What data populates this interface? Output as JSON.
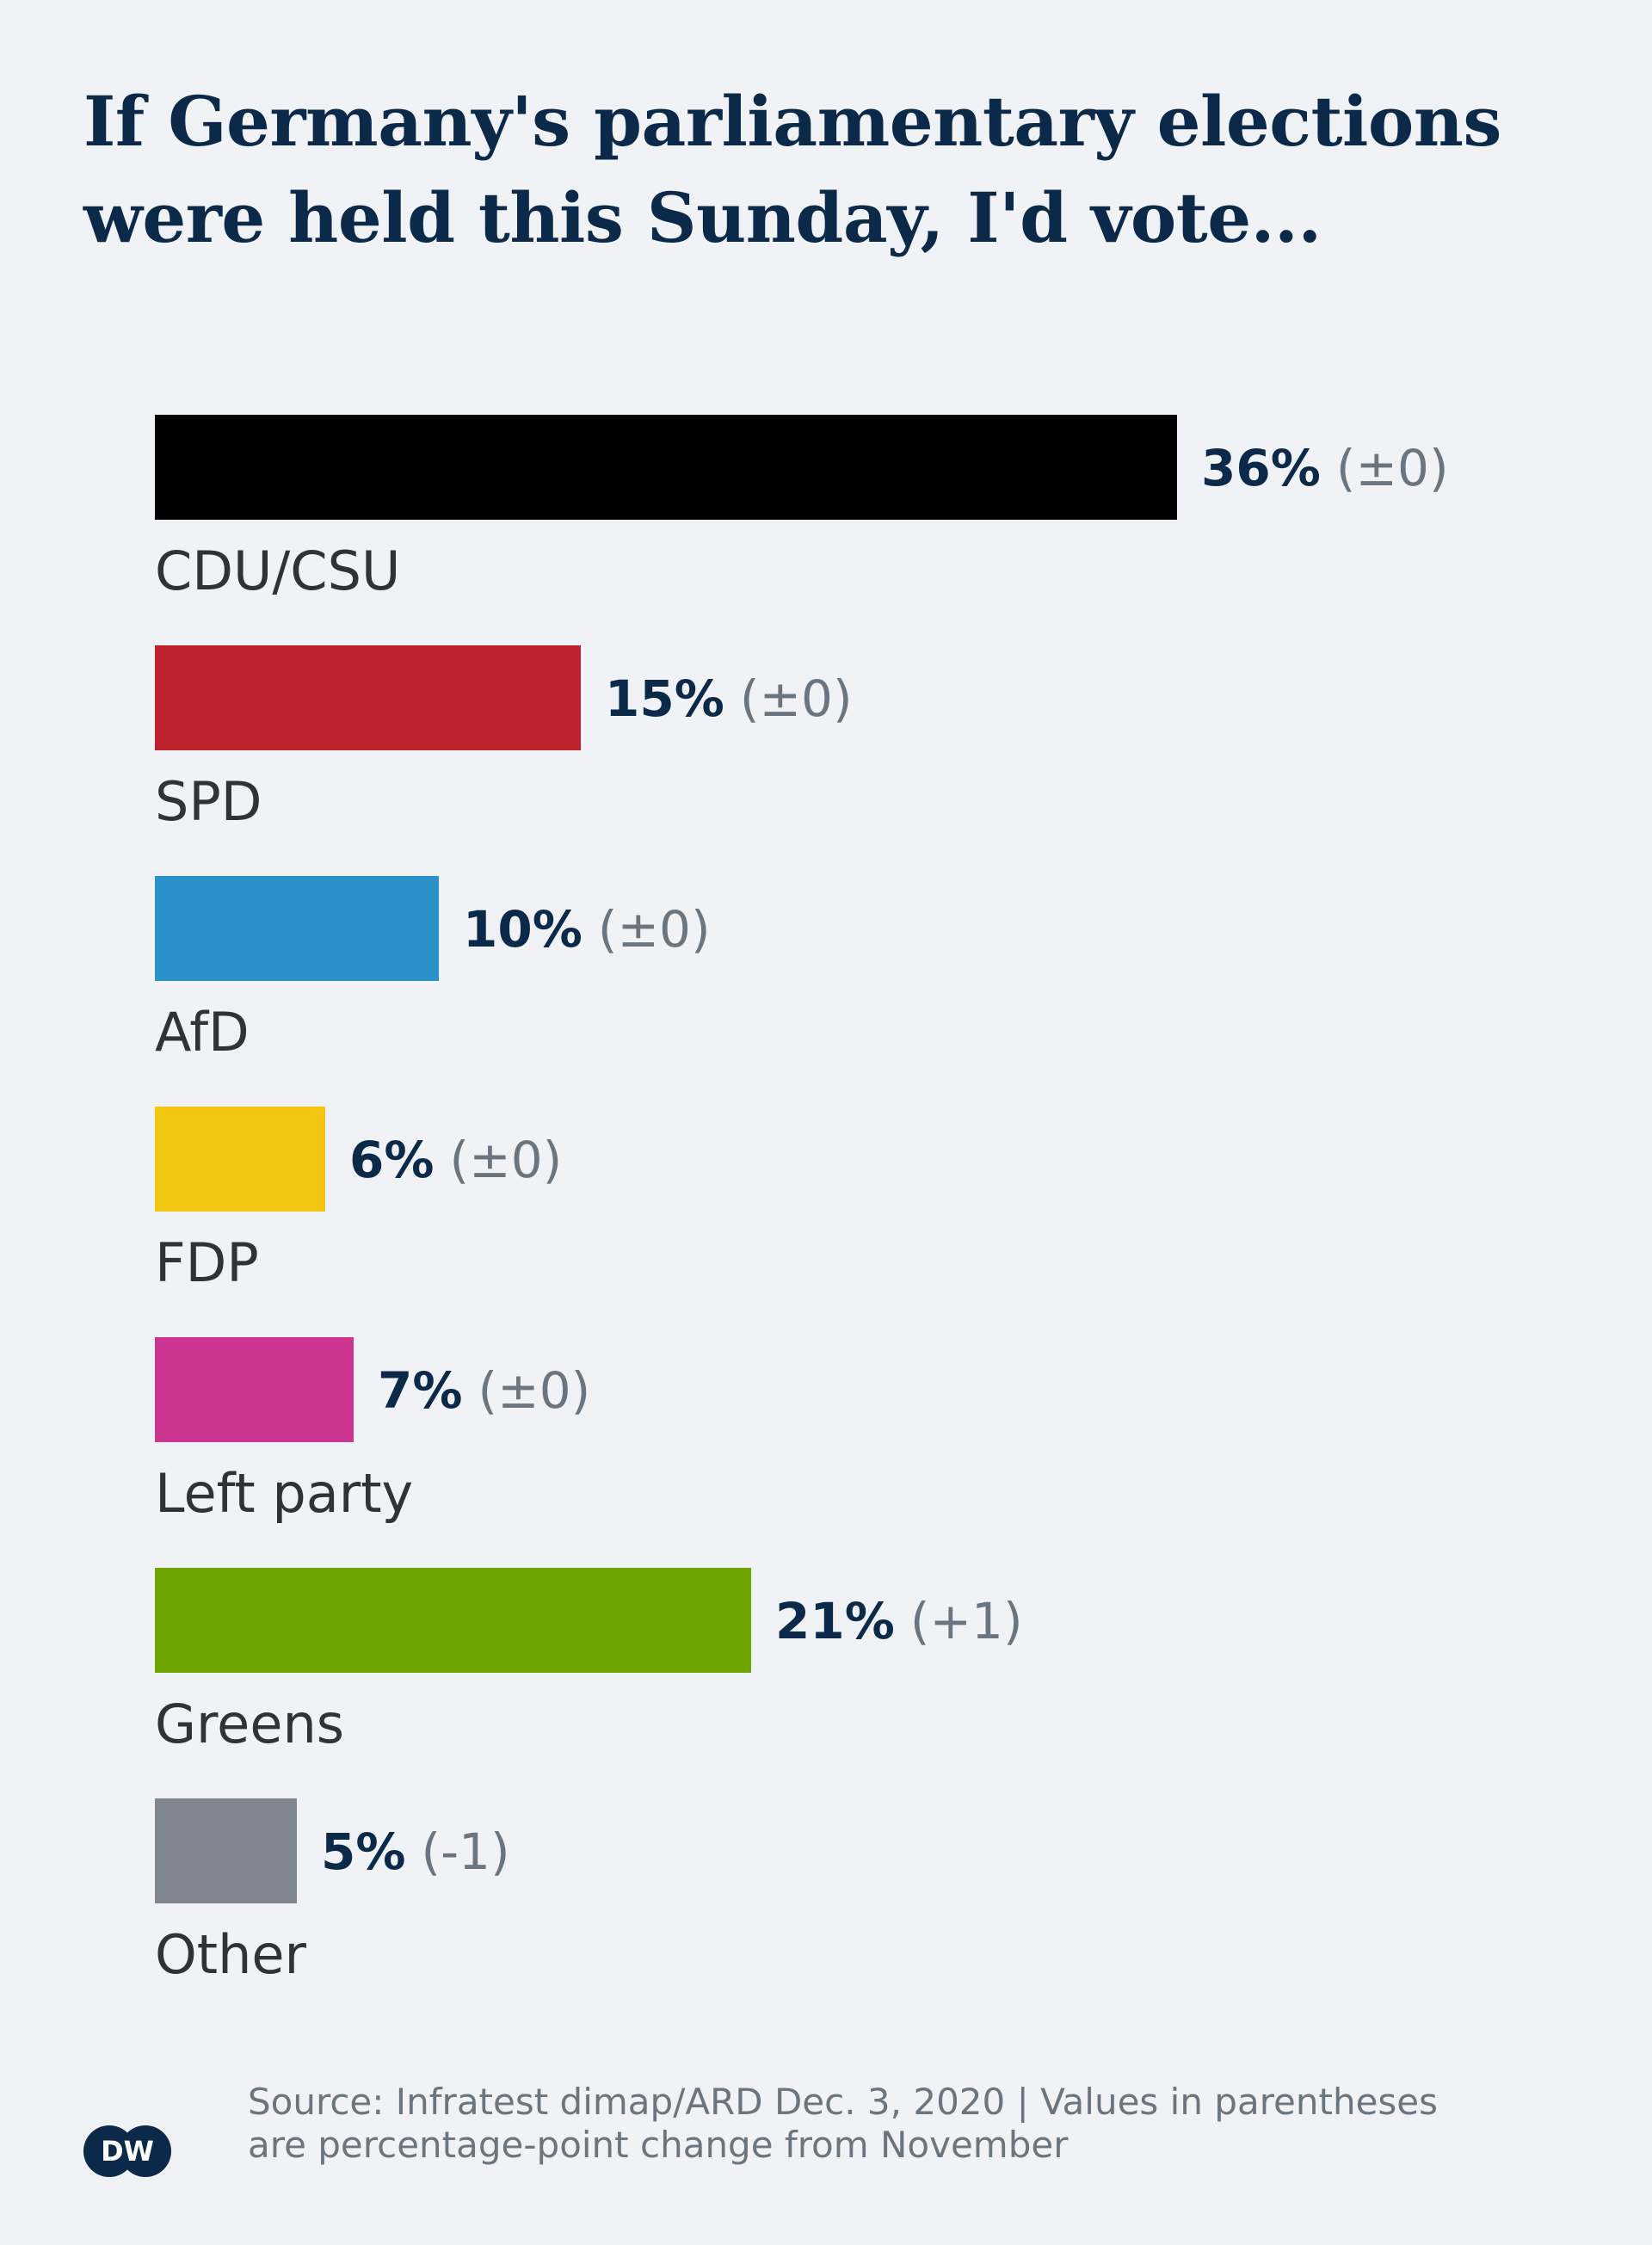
{
  "title_line1": "If Germany's parliamentary elections",
  "title_line2": "were held this Sunday, I'd vote...",
  "source_line1": "Source: Infratest dimap/ARD Dec. 3, 2020 | Values in parentheses",
  "source_line2": "are percentage-point change from November",
  "logo_text": "DW",
  "chart_data": {
    "type": "bar",
    "orientation": "horizontal",
    "categories": [
      "CDU/CSU",
      "SPD",
      "AfD",
      "FDP",
      "Left party",
      "Greens",
      "Other"
    ],
    "values": [
      36,
      15,
      10,
      6,
      7,
      21,
      5
    ],
    "value_labels": [
      "36%",
      "15%",
      "10%",
      "6%",
      "7%",
      "21%",
      "5%"
    ],
    "change_labels": [
      "(±0)",
      "(±0)",
      "(±0)",
      "(±0)",
      "(±0)",
      "(+1)",
      "(-1)"
    ],
    "colors": [
      "#000000",
      "#be222e",
      "#2d91c9",
      "#f1c712",
      "#cb348f",
      "#6ea500",
      "#80868f"
    ],
    "title": "If Germany's parliamentary elections were held this Sunday, I'd vote...",
    "xlabel": "",
    "ylabel": "",
    "grid": false,
    "legend": "none"
  }
}
